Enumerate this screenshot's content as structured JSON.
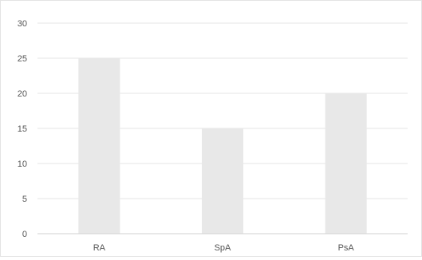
{
  "chart_data": {
    "type": "bar",
    "categories": [
      "RA",
      "SpA",
      "PsA"
    ],
    "values": [
      25,
      15,
      20
    ],
    "ylim": [
      0,
      30
    ],
    "yticks": [
      0,
      5,
      10,
      15,
      20,
      25,
      30
    ],
    "ytick_labels": [
      "0",
      "5",
      "10",
      "15",
      "20",
      "25",
      "30"
    ],
    "grid": true,
    "legend": "none",
    "title": "",
    "xlabel": "",
    "ylabel": "",
    "colors": {
      "bar": "#e8e8e8",
      "grid": "#e6e6e6",
      "axis": "#d2d2d2",
      "text": "#555555"
    }
  }
}
